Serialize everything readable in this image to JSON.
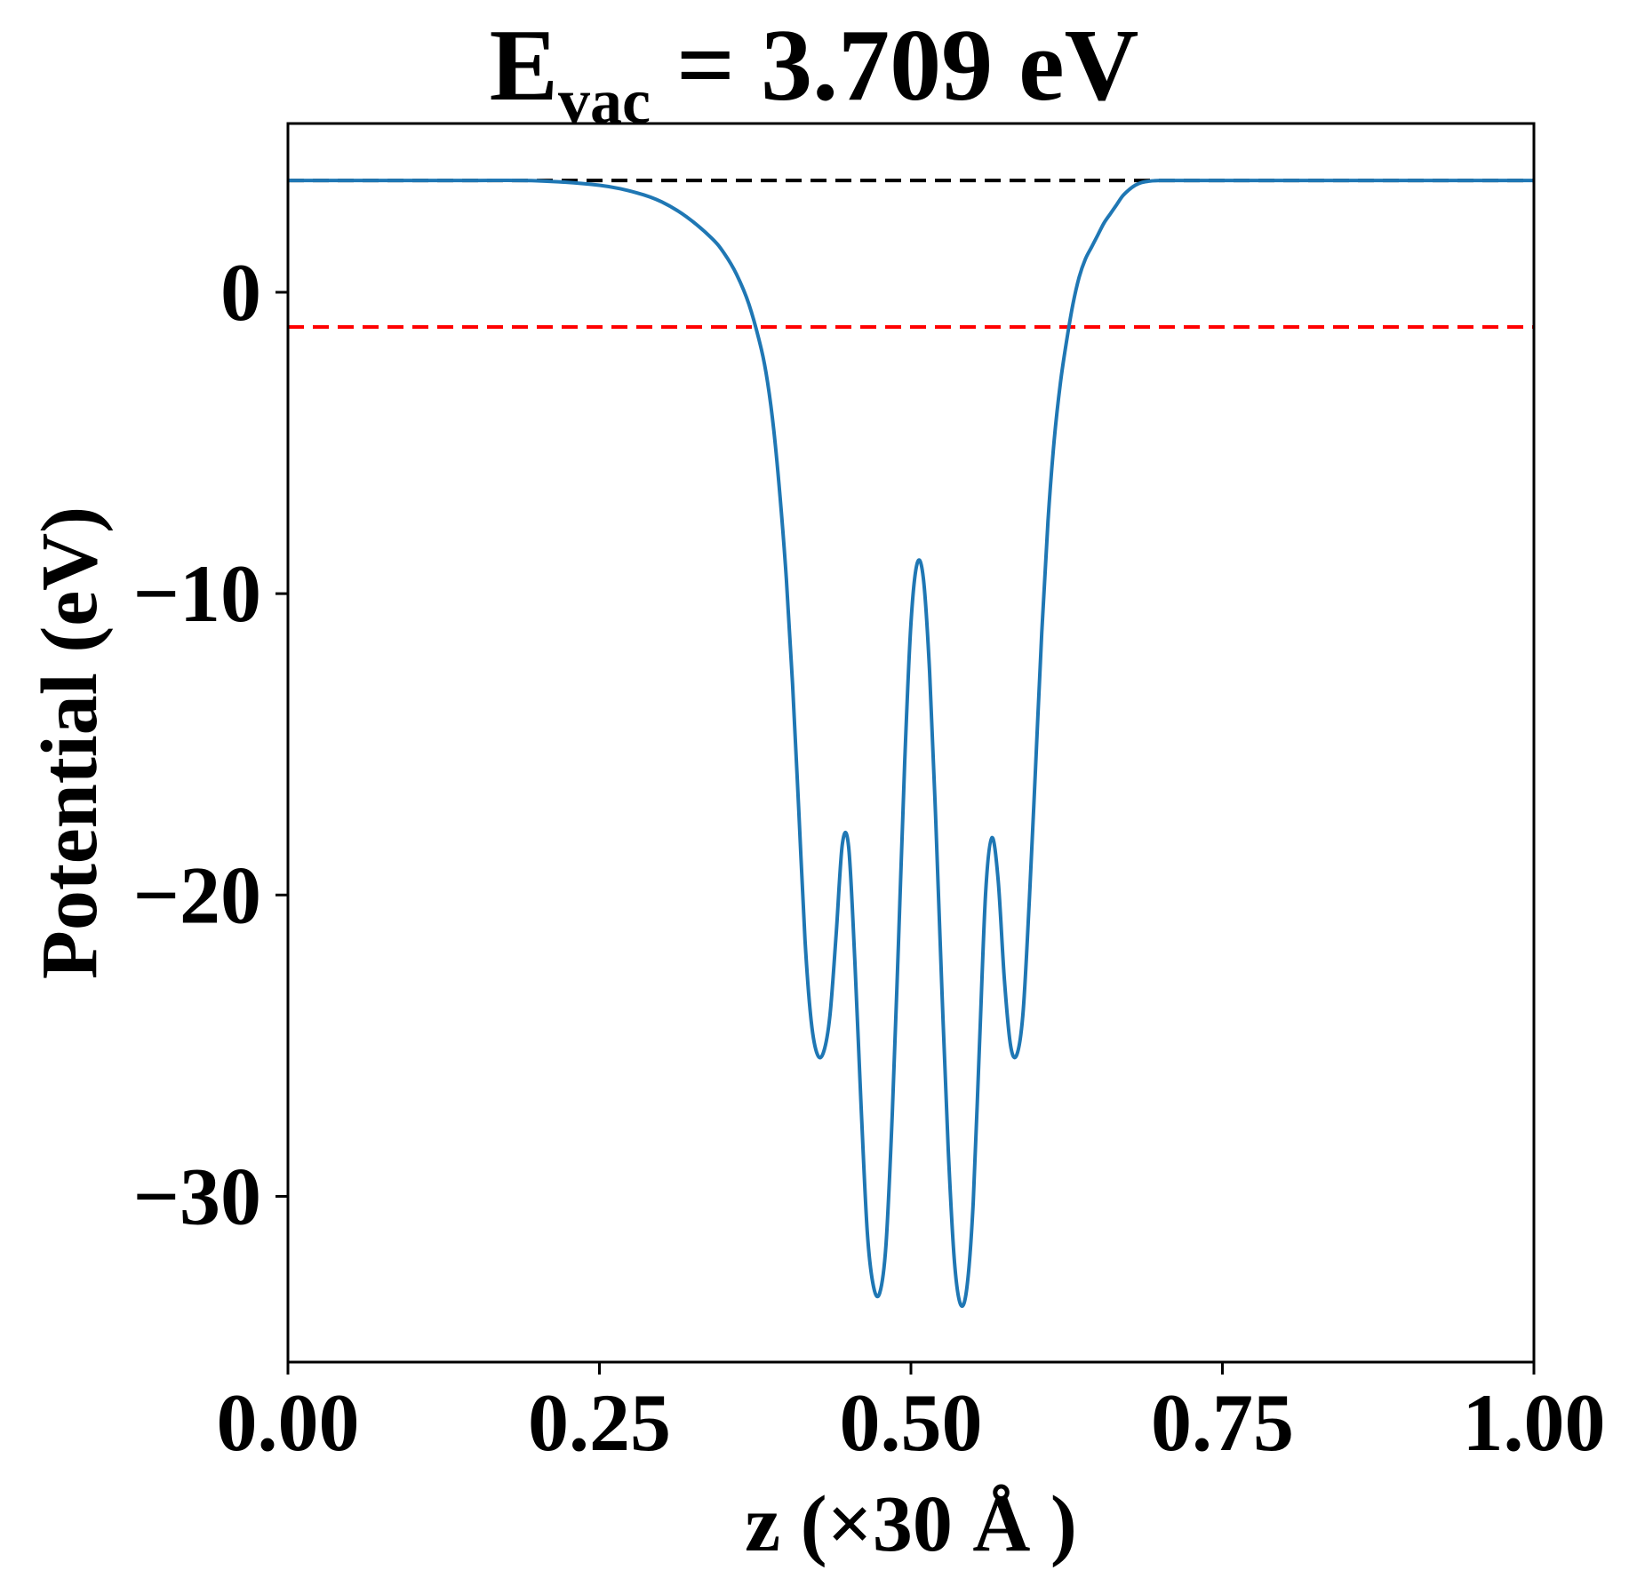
{
  "chart_data": {
    "type": "line",
    "title": {
      "main": "E",
      "subscript": "vac",
      "rest": " = 3.709 eV"
    },
    "xlabel": "z (×30 Å )",
    "ylabel": "Potential (eV)",
    "xlim": [
      0.0,
      1.0
    ],
    "ylim": [
      -35.5,
      5.6
    ],
    "x_ticks": [
      {
        "value": 0.0,
        "label": "0.00"
      },
      {
        "value": 0.25,
        "label": "0.25"
      },
      {
        "value": 0.5,
        "label": "0.50"
      },
      {
        "value": 0.75,
        "label": "0.75"
      },
      {
        "value": 1.0,
        "label": "1.00"
      }
    ],
    "y_ticks": [
      {
        "value": 0,
        "label": "0"
      },
      {
        "value": -10,
        "label": "−10"
      },
      {
        "value": -20,
        "label": "−20"
      },
      {
        "value": -30,
        "label": "−30"
      }
    ],
    "grid": false,
    "reference_lines": [
      {
        "value": 3.709,
        "color": "#000000",
        "style": "dashed"
      },
      {
        "value": -1.15,
        "color": "#ff0000",
        "style": "dashed"
      }
    ],
    "series": [
      {
        "color": "#1f77b4",
        "x": [
          0.0,
          0.05,
          0.1,
          0.15,
          0.2,
          0.25,
          0.28,
          0.3,
          0.32,
          0.34,
          0.35,
          0.36,
          0.37,
          0.38,
          0.385,
          0.39,
          0.395,
          0.4,
          0.405,
          0.41,
          0.415,
          0.42,
          0.425,
          0.43,
          0.435,
          0.44,
          0.445,
          0.45,
          0.455,
          0.46,
          0.465,
          0.47,
          0.475,
          0.48,
          0.485,
          0.49,
          0.495,
          0.5,
          0.505,
          0.51,
          0.515,
          0.52,
          0.525,
          0.53,
          0.535,
          0.54,
          0.545,
          0.55,
          0.555,
          0.56,
          0.565,
          0.57,
          0.575,
          0.58,
          0.585,
          0.59,
          0.595,
          0.6,
          0.605,
          0.61,
          0.615,
          0.62,
          0.625,
          0.63,
          0.635,
          0.64,
          0.645,
          0.65,
          0.655,
          0.66,
          0.665,
          0.67,
          0.675,
          0.68,
          0.685,
          0.69,
          0.695,
          0.7,
          0.71,
          0.72,
          0.73,
          0.74,
          0.76,
          0.78,
          0.8,
          0.85,
          0.9,
          0.95,
          1.0
        ],
        "y": [
          3.71,
          3.71,
          3.71,
          3.71,
          3.7,
          3.55,
          3.3,
          3.0,
          2.5,
          1.8,
          1.3,
          0.6,
          -0.4,
          -1.9,
          -3.0,
          -4.6,
          -6.8,
          -9.5,
          -13.0,
          -17.2,
          -21.5,
          -24.2,
          -25.3,
          -25.2,
          -24.0,
          -21.3,
          -18.3,
          -18.4,
          -22.2,
          -27.0,
          -31.2,
          -33.0,
          -33.2,
          -31.6,
          -27.3,
          -21.6,
          -15.6,
          -11.0,
          -9.0,
          -9.5,
          -12.6,
          -17.6,
          -23.3,
          -28.5,
          -32.2,
          -33.6,
          -33.0,
          -30.2,
          -25.0,
          -19.9,
          -18.1,
          -19.5,
          -22.8,
          -25.0,
          -25.3,
          -23.9,
          -20.2,
          -15.8,
          -11.3,
          -7.6,
          -4.9,
          -3.0,
          -1.6,
          -0.4,
          0.5,
          1.1,
          1.5,
          1.9,
          2.3,
          2.6,
          2.9,
          3.2,
          3.4,
          3.55,
          3.64,
          3.68,
          3.7,
          3.71,
          3.71,
          3.71,
          3.71,
          3.71,
          3.71,
          3.71,
          3.71,
          3.71,
          3.71,
          3.71,
          3.71
        ]
      }
    ]
  }
}
